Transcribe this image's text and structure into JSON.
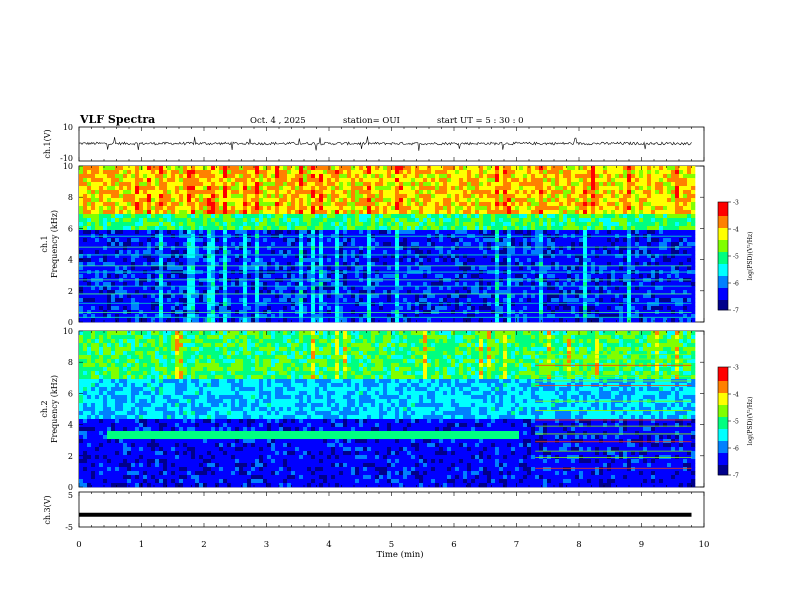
{
  "header": {
    "title": "VLF Spectra",
    "date": "Oct. 4 , 2025",
    "station": "station= OUI",
    "start_ut": "start UT = 5 : 30 : 0"
  },
  "colors": {
    "colormap": [
      "#00008b",
      "#0000ff",
      "#0080ff",
      "#00ffff",
      "#00ff80",
      "#80ff00",
      "#ffff00",
      "#ff8000",
      "#ff0000",
      "#ffffff"
    ],
    "waveform": "#000000",
    "ch3_line": "#000000"
  },
  "chart_data": [
    {
      "type": "line",
      "name": "ch1-waveform",
      "ylabel": "ch.1(V)",
      "ylim": [
        -10,
        10
      ],
      "yticks": [
        "10",
        "-10"
      ],
      "x_range_min": [
        0,
        9.8
      ],
      "baseline": 0.3,
      "noise_amplitude": 0.8
    },
    {
      "type": "heatmap",
      "name": "ch1-spectrogram",
      "ylabel_line1": "ch.1",
      "ylabel_line2": "Frequency (kHz)",
      "ylim": [
        0,
        10
      ],
      "yticks": [
        "0",
        "2",
        "4",
        "6",
        "8",
        "10"
      ],
      "x_range_min": [
        0,
        9.8
      ],
      "colorbar": {
        "label": "log(PSD)(V²/Hz)",
        "range": [
          -7,
          -3
        ],
        "ticks": [
          "-3",
          "-4",
          "-5",
          "-6",
          "-7"
        ]
      },
      "features": {
        "high_band_kHz": [
          7,
          10
        ],
        "low_band_kHz": [
          0,
          6
        ],
        "horizontal_lines_kHz": [
          0.3,
          0.6,
          1.2,
          1.8,
          2.3,
          2.7,
          3.2,
          3.6,
          4.3,
          4.8,
          5.5
        ]
      }
    },
    {
      "type": "heatmap",
      "name": "ch2-spectrogram",
      "ylabel_line1": "ch.2",
      "ylabel_line2": "Frequency (kHz)",
      "ylim": [
        0,
        10
      ],
      "yticks": [
        "0",
        "2",
        "4",
        "6",
        "8",
        "10"
      ],
      "x_range_min": [
        0,
        9.8
      ],
      "colorbar": {
        "label": "log(PSD)(V²/Hz)",
        "range": [
          -7,
          -3
        ],
        "ticks": [
          "-3",
          "-4",
          "-5",
          "-6",
          "-7"
        ]
      },
      "features": {
        "band_kHz": [
          3.1,
          3.6
        ],
        "band_time_min": [
          0.4,
          7.0
        ],
        "after_7min_lines_kHz": [
          1.2,
          1.9,
          2.3,
          2.9,
          3.4,
          3.9,
          4.3,
          4.9,
          5.5,
          6.5,
          6.8,
          7.1,
          7.8,
          8.2,
          8.5
        ]
      }
    },
    {
      "type": "line",
      "name": "ch3-line",
      "ylabel": "ch.3(V)",
      "ylim": [
        -5,
        5
      ],
      "yticks": [
        "5",
        "-5"
      ],
      "x": [
        0,
        9.8
      ],
      "y": [
        -1.5,
        -1.5
      ]
    }
  ],
  "xaxis": {
    "label": "Time (min)",
    "range": [
      0,
      10
    ],
    "ticks": [
      "0",
      "1",
      "2",
      "3",
      "4",
      "5",
      "6",
      "7",
      "8",
      "9",
      "10"
    ]
  }
}
